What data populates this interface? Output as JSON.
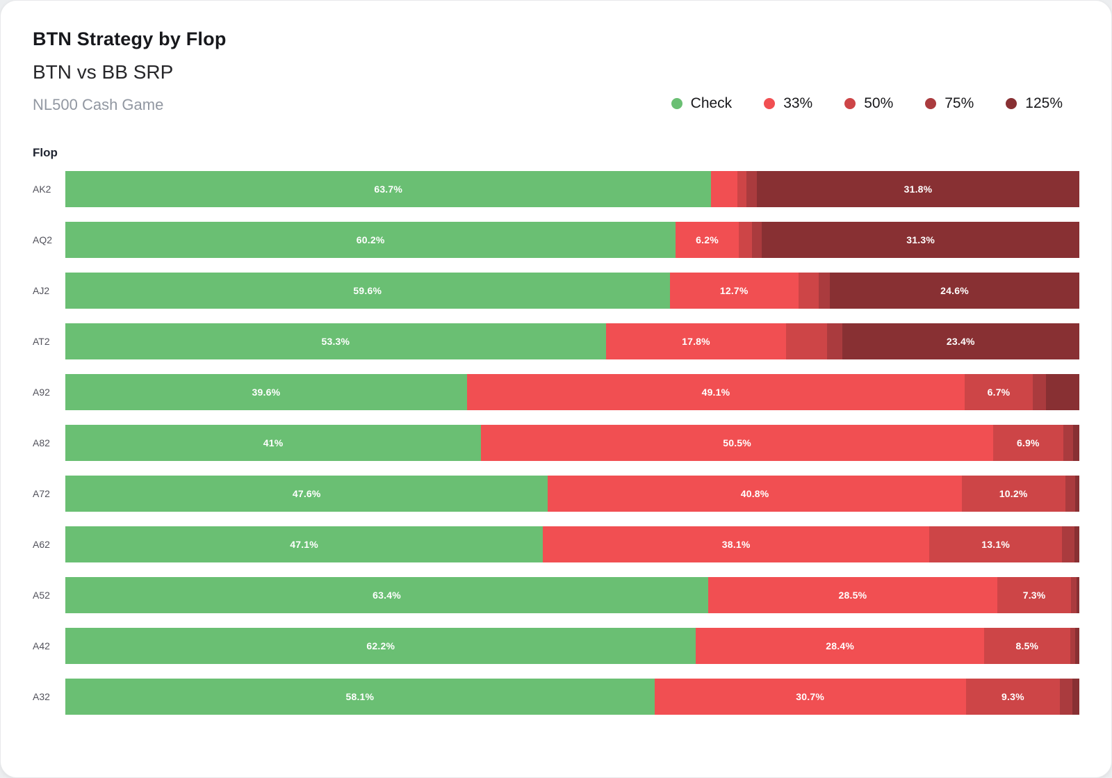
{
  "header": {
    "title": "BTN Strategy by Flop",
    "subtitle": "BTN vs BB SRP",
    "caption": "NL500 Cash Game"
  },
  "axis": {
    "label": "Flop"
  },
  "legend": {
    "items": [
      {
        "label": "Check",
        "color": "#6abf73"
      },
      {
        "label": "33%",
        "color": "#f14f52"
      },
      {
        "label": "50%",
        "color": "#cd4547"
      },
      {
        "label": "75%",
        "color": "#aa3b3e"
      },
      {
        "label": "125%",
        "color": "#883033"
      }
    ]
  },
  "chart_data": {
    "type": "bar",
    "orientation": "horizontal",
    "stacked": true,
    "unit": "%",
    "title": "BTN Strategy by Flop",
    "subtitle": "BTN vs BB SRP",
    "xlim": [
      0,
      100
    ],
    "grid": false,
    "legend_position": "top-right",
    "label_min_percent": 5,
    "categories": [
      "AK2",
      "AQ2",
      "AJ2",
      "AT2",
      "A92",
      "A82",
      "A72",
      "A62",
      "A52",
      "A42",
      "A32"
    ],
    "series": [
      {
        "name": "Check",
        "color": "#6abf73",
        "values": [
          63.7,
          60.2,
          59.6,
          53.3,
          39.6,
          41,
          47.6,
          47.1,
          63.4,
          62.2,
          58.1
        ]
      },
      {
        "name": "33%",
        "color": "#f14f52",
        "values": [
          2.6,
          6.2,
          12.7,
          17.8,
          49.1,
          50.5,
          40.8,
          38.1,
          28.5,
          28.4,
          30.7
        ]
      },
      {
        "name": "50%",
        "color": "#cd4547",
        "values": [
          0.9,
          1.3,
          2.0,
          4.0,
          6.7,
          6.9,
          10.2,
          13.1,
          7.3,
          8.5,
          9.3
        ]
      },
      {
        "name": "75%",
        "color": "#aa3b3e",
        "values": [
          1.0,
          1.0,
          1.1,
          1.5,
          1.3,
          1.0,
          1.0,
          1.2,
          0.5,
          0.5,
          1.2
        ]
      },
      {
        "name": "125%",
        "color": "#883033",
        "values": [
          31.8,
          31.3,
          24.6,
          23.4,
          3.3,
          0.6,
          0.4,
          0.5,
          0.3,
          0.4,
          0.7
        ]
      }
    ],
    "visible_segment_labels": {
      "AK2": {
        "Check": "63.7%",
        "125%": "31.8%"
      },
      "AQ2": {
        "Check": "60.2%",
        "33%": "6.2%",
        "125%": "31.3%"
      },
      "AJ2": {
        "Check": "59.6%",
        "33%": "12.7%",
        "125%": "24.6%"
      },
      "AT2": {
        "Check": "53.3%",
        "33%": "17.8%",
        "125%": "23.4%"
      },
      "A92": {
        "Check": "39.6%",
        "33%": "49.1%",
        "50%": "6.7%"
      },
      "A82": {
        "Check": "41%",
        "33%": "50.5%",
        "50%": "6.9%"
      },
      "A72": {
        "Check": "47.6%",
        "33%": "40.8%",
        "50%": "10.2%"
      },
      "A62": {
        "Check": "47.1%",
        "33%": "38.1%",
        "50%": "13.1%"
      },
      "A52": {
        "Check": "63.4%",
        "33%": "28.5%",
        "50%": "7.3%"
      },
      "A42": {
        "Check": "62.2%",
        "33%": "28.4%",
        "50%": "8.5%"
      },
      "A32": {
        "Check": "58.1%",
        "33%": "30.7%",
        "50%": "9.3%"
      }
    }
  }
}
